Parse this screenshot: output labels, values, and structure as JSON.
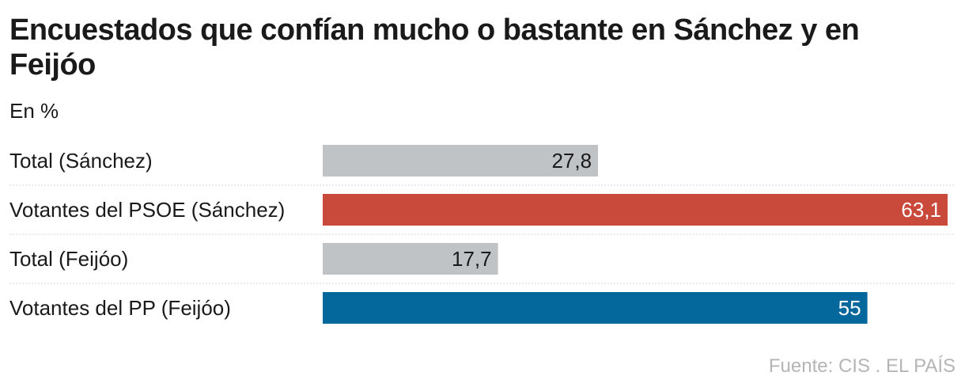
{
  "title": "Encuestados que confían mucho o bastante en Sánchez y en Feijóo",
  "subtitle": "En %",
  "source": "Fuente: CIS . EL PAÍS",
  "colors": {
    "grey": "#bfc3c5",
    "psoe": "#c9493b",
    "pp": "#05689c",
    "separator": "#d6d6d6"
  },
  "chart_data": {
    "type": "bar",
    "orientation": "horizontal",
    "categories": [
      "Total (Sánchez)",
      "Votantes del PSOE (Sánchez)",
      "Total (Feijóo)",
      "Votantes del PP (Feijóo)"
    ],
    "values": [
      27.8,
      63.1,
      17.7,
      55
    ],
    "value_labels": [
      "27,8",
      "63,1",
      "17,7",
      "55"
    ],
    "bar_colors": [
      "#bfc3c5",
      "#c9493b",
      "#bfc3c5",
      "#05689c"
    ],
    "label_colors": [
      "#1a1a1a",
      "#ffffff",
      "#1a1a1a",
      "#ffffff"
    ],
    "xlim": [
      0,
      63.1
    ],
    "grid": false
  }
}
